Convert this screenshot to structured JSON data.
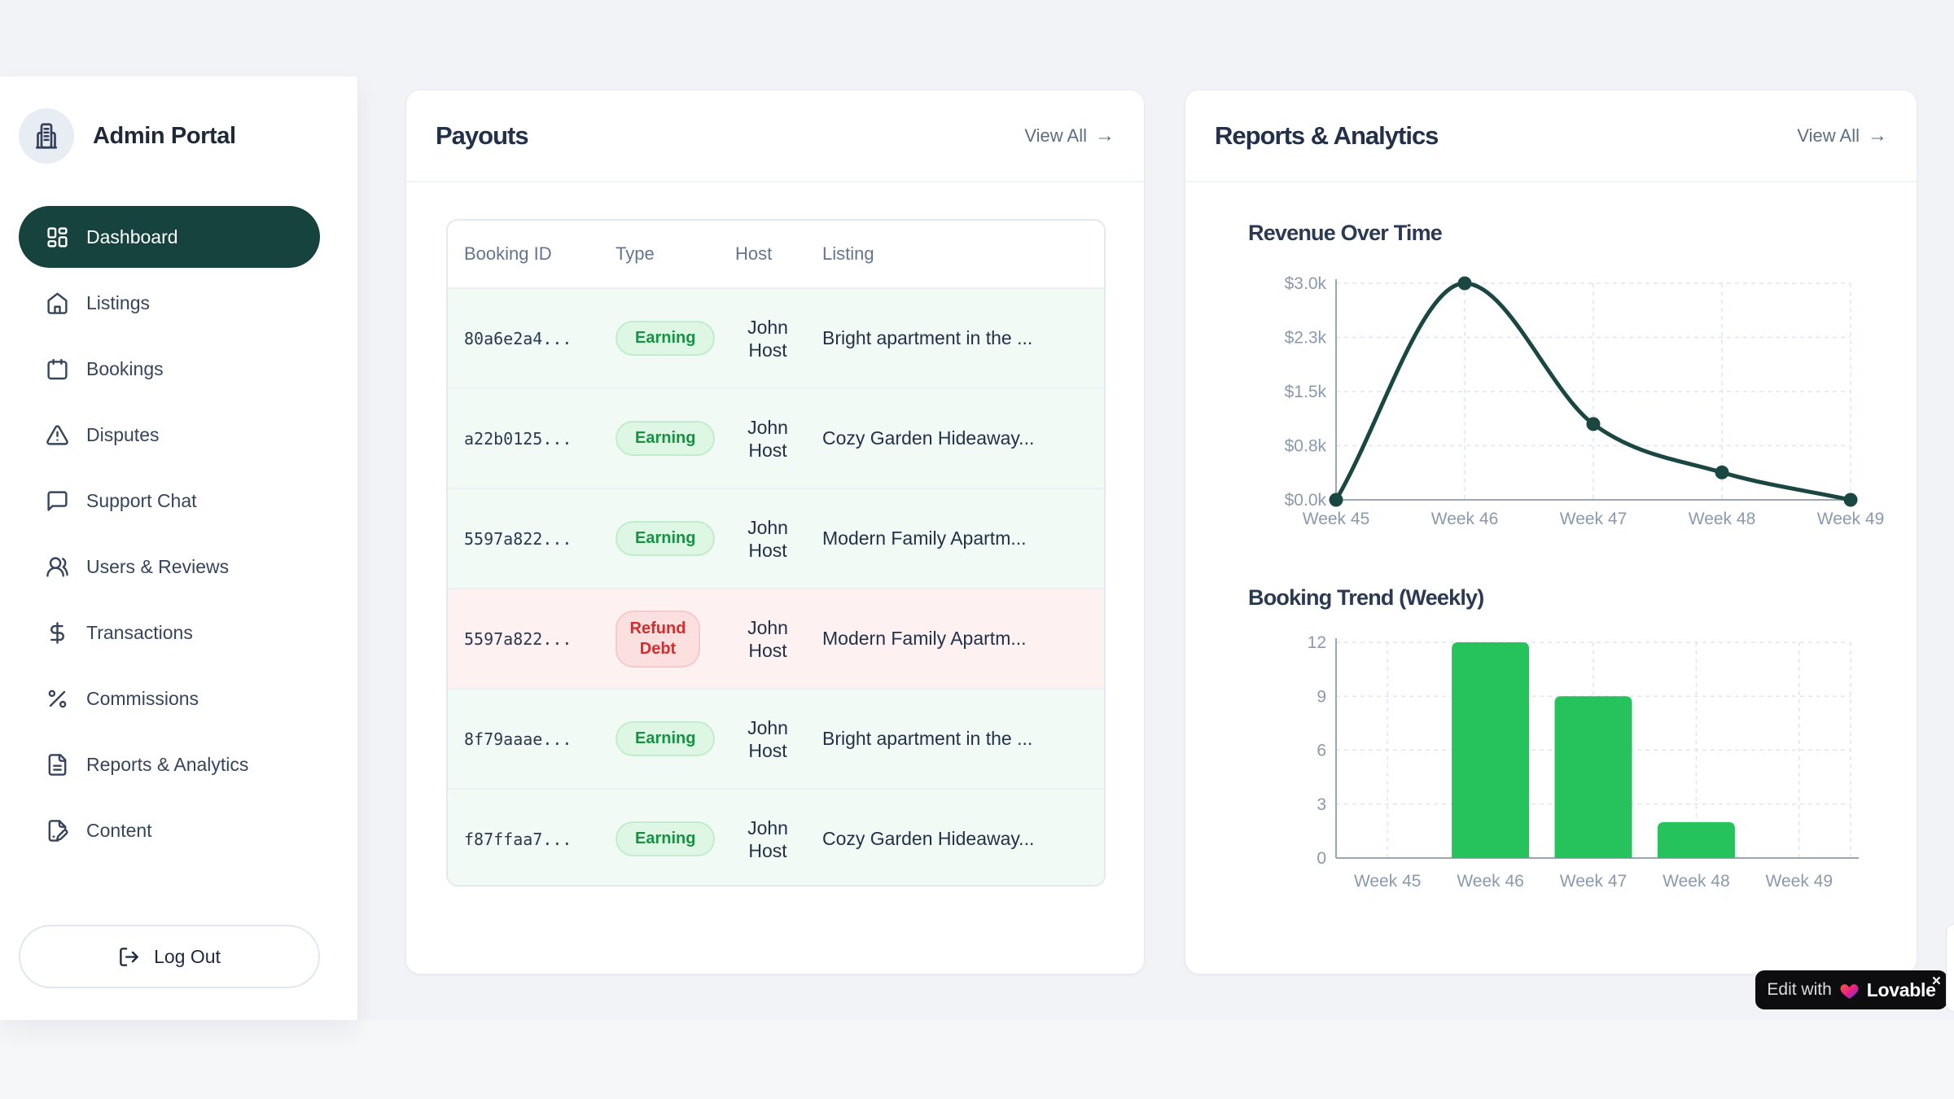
{
  "sidebar": {
    "title": "Admin Portal",
    "logo_icon": "building-icon",
    "items": [
      {
        "label": "Dashboard",
        "icon": "dashboard-icon",
        "active": true
      },
      {
        "label": "Listings",
        "icon": "home-icon",
        "active": false
      },
      {
        "label": "Bookings",
        "icon": "calendar-icon",
        "active": false
      },
      {
        "label": "Disputes",
        "icon": "alert-triangle-icon",
        "active": false
      },
      {
        "label": "Support Chat",
        "icon": "chat-bubble-icon",
        "active": false
      },
      {
        "label": "Users & Reviews",
        "icon": "users-icon",
        "active": false
      },
      {
        "label": "Transactions",
        "icon": "dollar-icon",
        "active": false
      },
      {
        "label": "Commissions",
        "icon": "percent-icon",
        "active": false
      },
      {
        "label": "Reports & Analytics",
        "icon": "file-text-icon",
        "active": false
      },
      {
        "label": "Content",
        "icon": "file-pen-icon",
        "active": false
      }
    ],
    "logout_label": "Log Out"
  },
  "payouts": {
    "title": "Payouts",
    "view_all": "View All",
    "columns": [
      "Booking ID",
      "Type",
      "Host",
      "Listing"
    ],
    "rows": [
      {
        "booking_id": "80a6e2a4...",
        "type": "Earning",
        "type_variant": "earning",
        "host": "John Host",
        "listing": "Bright apartment in the ..."
      },
      {
        "booking_id": "a22b0125...",
        "type": "Earning",
        "type_variant": "earning",
        "host": "John Host",
        "listing": "Cozy Garden Hideaway..."
      },
      {
        "booking_id": "5597a822...",
        "type": "Earning",
        "type_variant": "earning",
        "host": "John Host",
        "listing": "Modern Family Apartm..."
      },
      {
        "booking_id": "5597a822...",
        "type": "Refund Debt",
        "type_variant": "refund",
        "host": "John Host",
        "listing": "Modern Family Apartm..."
      },
      {
        "booking_id": "8f79aaae...",
        "type": "Earning",
        "type_variant": "earning",
        "host": "John Host",
        "listing": "Bright apartment in the ..."
      },
      {
        "booking_id": "f87ffaa7...",
        "type": "Earning",
        "type_variant": "earning",
        "host": "John Host",
        "listing": "Cozy Garden Hideaway..."
      }
    ]
  },
  "reports": {
    "title": "Reports & Analytics",
    "view_all": "View All"
  },
  "chart_data": [
    {
      "type": "line",
      "title": "Revenue Over Time",
      "x": [
        "Week 45",
        "Week 46",
        "Week 47",
        "Week 48",
        "Week 49"
      ],
      "values": [
        0,
        3000,
        1050,
        380,
        0
      ],
      "ylim": [
        0,
        3000
      ],
      "y_ticks": [
        {
          "v": 0,
          "label": "$0.0k"
        },
        {
          "v": 750,
          "label": "$0.8k"
        },
        {
          "v": 1500,
          "label": "$1.5k"
        },
        {
          "v": 2250,
          "label": "$2.3k"
        },
        {
          "v": 3000,
          "label": "$3.0k"
        }
      ],
      "grid": "dashed",
      "legend": "none",
      "line_color": "#1b4742"
    },
    {
      "type": "bar",
      "title": "Booking Trend (Weekly)",
      "categories": [
        "Week 45",
        "Week 46",
        "Week 47",
        "Week 48",
        "Week 49"
      ],
      "values": [
        0,
        12,
        9,
        2,
        0
      ],
      "ylim": [
        0,
        12
      ],
      "y_ticks": [
        {
          "v": 0,
          "label": "0"
        },
        {
          "v": 3,
          "label": "3"
        },
        {
          "v": 6,
          "label": "6"
        },
        {
          "v": 9,
          "label": "9"
        },
        {
          "v": 12,
          "label": "12"
        }
      ],
      "grid": "dashed",
      "legend": "none",
      "bar_color": "#26c35c"
    }
  ],
  "lovable_badge": {
    "prefix": "Edit with",
    "brand": "Lovable",
    "heart_icon": "lovable-heart-icon",
    "close": "×"
  },
  "colors": {
    "accent_teal": "#17433e",
    "chart_line": "#1b4742",
    "bar_green": "#26c35c",
    "earning_text": "#189144",
    "refund_text": "#d92b2b",
    "axis_label": "#8b99ad",
    "grid_dash": "#dfe6ef",
    "axis_line": "#9aa6b4"
  }
}
